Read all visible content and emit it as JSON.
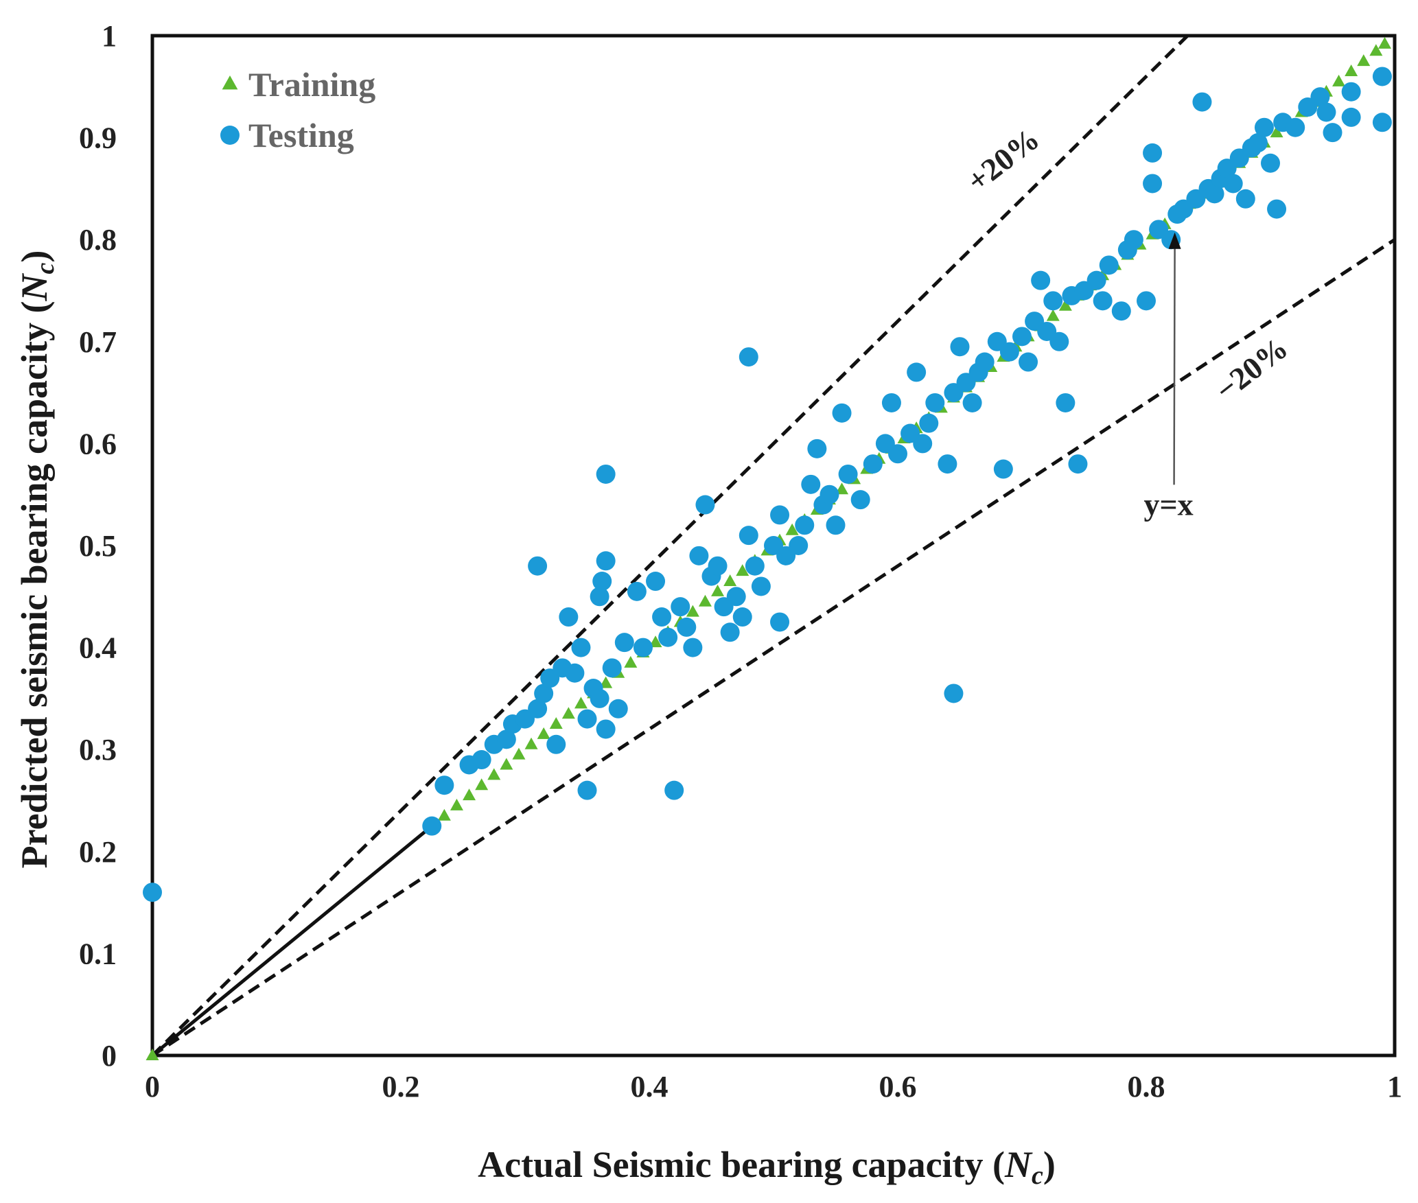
{
  "chart_data": {
    "type": "scatter",
    "title": "",
    "xlabel": "Actual Seismic bearing capacity (",
    "xlabel_var": "N",
    "xlabel_sub": "c",
    "xlabel_end": ")",
    "ylabel": "Predicted seismic bearing capacity (",
    "ylabel_var": "N",
    "ylabel_sub": "c",
    "ylabel_end": ")",
    "xlim": [
      0,
      1
    ],
    "ylim": [
      0,
      1
    ],
    "xticks": [
      "0",
      "0.2",
      "0.4",
      "0.6",
      "0.8",
      "1"
    ],
    "yticks": [
      "0",
      "0.1",
      "0.2",
      "0.3",
      "0.4",
      "0.5",
      "0.6",
      "0.7",
      "0.8",
      "0.9",
      "1"
    ],
    "xtick_values": [
      0,
      0.2,
      0.4,
      0.6,
      0.8,
      1
    ],
    "ytick_values": [
      0,
      0.1,
      0.2,
      0.3,
      0.4,
      0.5,
      0.6,
      0.7,
      0.8,
      0.9,
      1
    ],
    "legend": {
      "position": "top-left",
      "entries": [
        "Training",
        "Testing"
      ]
    },
    "colors": {
      "training": "#5cb82f",
      "testing": "#1b9ad7",
      "lines": "#111111"
    },
    "reference_lines": [
      {
        "name": "y=x",
        "slope": 1.0,
        "style": "solid",
        "from": 0,
        "to": 0.225
      },
      {
        "name": "+20%",
        "slope": 1.2,
        "style": "dashed"
      },
      {
        "name": "-20%",
        "slope": 0.8,
        "style": "dashed"
      }
    ],
    "annotations": [
      {
        "text": "+20%",
        "x": 0.69,
        "y": 0.87
      },
      {
        "text": "−20%",
        "x": 0.89,
        "y": 0.665
      },
      {
        "text": "y=x",
        "x": 0.818,
        "y": 0.53,
        "arrow_to": [
          0.823,
          0.807
        ]
      }
    ],
    "series": [
      {
        "name": "Training",
        "marker": "triangle",
        "points": [
          [
            0,
            0
          ],
          [
            0.225,
            0.225
          ],
          [
            0.235,
            0.235
          ],
          [
            0.245,
            0.245
          ],
          [
            0.255,
            0.255
          ],
          [
            0.265,
            0.265
          ],
          [
            0.275,
            0.275
          ],
          [
            0.285,
            0.285
          ],
          [
            0.295,
            0.295
          ],
          [
            0.305,
            0.305
          ],
          [
            0.315,
            0.315
          ],
          [
            0.325,
            0.325
          ],
          [
            0.335,
            0.335
          ],
          [
            0.345,
            0.345
          ],
          [
            0.355,
            0.355
          ],
          [
            0.365,
            0.365
          ],
          [
            0.375,
            0.375
          ],
          [
            0.385,
            0.385
          ],
          [
            0.395,
            0.395
          ],
          [
            0.405,
            0.405
          ],
          [
            0.415,
            0.415
          ],
          [
            0.425,
            0.425
          ],
          [
            0.435,
            0.435
          ],
          [
            0.445,
            0.445
          ],
          [
            0.455,
            0.455
          ],
          [
            0.465,
            0.465
          ],
          [
            0.475,
            0.475
          ],
          [
            0.485,
            0.485
          ],
          [
            0.495,
            0.495
          ],
          [
            0.505,
            0.505
          ],
          [
            0.515,
            0.515
          ],
          [
            0.525,
            0.525
          ],
          [
            0.535,
            0.535
          ],
          [
            0.545,
            0.545
          ],
          [
            0.555,
            0.555
          ],
          [
            0.565,
            0.565
          ],
          [
            0.575,
            0.575
          ],
          [
            0.585,
            0.585
          ],
          [
            0.595,
            0.595
          ],
          [
            0.605,
            0.605
          ],
          [
            0.615,
            0.615
          ],
          [
            0.625,
            0.625
          ],
          [
            0.635,
            0.635
          ],
          [
            0.645,
            0.645
          ],
          [
            0.655,
            0.655
          ],
          [
            0.665,
            0.665
          ],
          [
            0.675,
            0.675
          ],
          [
            0.685,
            0.685
          ],
          [
            0.695,
            0.695
          ],
          [
            0.705,
            0.705
          ],
          [
            0.715,
            0.715
          ],
          [
            0.725,
            0.725
          ],
          [
            0.735,
            0.735
          ],
          [
            0.745,
            0.745
          ],
          [
            0.755,
            0.755
          ],
          [
            0.765,
            0.765
          ],
          [
            0.775,
            0.775
          ],
          [
            0.785,
            0.785
          ],
          [
            0.795,
            0.795
          ],
          [
            0.805,
            0.805
          ],
          [
            0.815,
            0.815
          ],
          [
            0.825,
            0.825
          ],
          [
            0.835,
            0.835
          ],
          [
            0.845,
            0.845
          ],
          [
            0.855,
            0.855
          ],
          [
            0.865,
            0.865
          ],
          [
            0.875,
            0.875
          ],
          [
            0.885,
            0.885
          ],
          [
            0.895,
            0.895
          ],
          [
            0.905,
            0.905
          ],
          [
            0.915,
            0.915
          ],
          [
            0.925,
            0.925
          ],
          [
            0.935,
            0.935
          ],
          [
            0.945,
            0.945
          ],
          [
            0.955,
            0.955
          ],
          [
            0.965,
            0.965
          ],
          [
            0.975,
            0.975
          ],
          [
            0.985,
            0.985
          ],
          [
            0.992,
            0.992
          ]
        ]
      },
      {
        "name": "Testing",
        "marker": "circle",
        "points": [
          [
            0,
            0.16
          ],
          [
            0.225,
            0.225
          ],
          [
            0.235,
            0.265
          ],
          [
            0.255,
            0.285
          ],
          [
            0.265,
            0.29
          ],
          [
            0.275,
            0.305
          ],
          [
            0.285,
            0.31
          ],
          [
            0.29,
            0.325
          ],
          [
            0.3,
            0.33
          ],
          [
            0.31,
            0.34
          ],
          [
            0.31,
            0.48
          ],
          [
            0.315,
            0.355
          ],
          [
            0.32,
            0.37
          ],
          [
            0.325,
            0.305
          ],
          [
            0.33,
            0.38
          ],
          [
            0.335,
            0.43
          ],
          [
            0.34,
            0.375
          ],
          [
            0.345,
            0.4
          ],
          [
            0.35,
            0.26
          ],
          [
            0.35,
            0.33
          ],
          [
            0.355,
            0.36
          ],
          [
            0.36,
            0.35
          ],
          [
            0.36,
            0.45
          ],
          [
            0.362,
            0.465
          ],
          [
            0.365,
            0.57
          ],
          [
            0.365,
            0.485
          ],
          [
            0.365,
            0.32
          ],
          [
            0.37,
            0.38
          ],
          [
            0.375,
            0.34
          ],
          [
            0.38,
            0.405
          ],
          [
            0.39,
            0.455
          ],
          [
            0.395,
            0.4
          ],
          [
            0.405,
            0.465
          ],
          [
            0.41,
            0.43
          ],
          [
            0.415,
            0.41
          ],
          [
            0.42,
            0.26
          ],
          [
            0.425,
            0.44
          ],
          [
            0.43,
            0.42
          ],
          [
            0.435,
            0.4
          ],
          [
            0.44,
            0.49
          ],
          [
            0.445,
            0.54
          ],
          [
            0.45,
            0.47
          ],
          [
            0.455,
            0.48
          ],
          [
            0.46,
            0.44
          ],
          [
            0.465,
            0.415
          ],
          [
            0.47,
            0.45
          ],
          [
            0.475,
            0.43
          ],
          [
            0.48,
            0.685
          ],
          [
            0.48,
            0.51
          ],
          [
            0.485,
            0.48
          ],
          [
            0.49,
            0.46
          ],
          [
            0.5,
            0.5
          ],
          [
            0.505,
            0.53
          ],
          [
            0.505,
            0.425
          ],
          [
            0.51,
            0.49
          ],
          [
            0.52,
            0.5
          ],
          [
            0.525,
            0.52
          ],
          [
            0.53,
            0.56
          ],
          [
            0.535,
            0.595
          ],
          [
            0.54,
            0.54
          ],
          [
            0.545,
            0.55
          ],
          [
            0.55,
            0.52
          ],
          [
            0.555,
            0.63
          ],
          [
            0.56,
            0.57
          ],
          [
            0.57,
            0.545
          ],
          [
            0.58,
            0.58
          ],
          [
            0.59,
            0.6
          ],
          [
            0.595,
            0.64
          ],
          [
            0.6,
            0.59
          ],
          [
            0.61,
            0.61
          ],
          [
            0.615,
            0.67
          ],
          [
            0.62,
            0.6
          ],
          [
            0.625,
            0.62
          ],
          [
            0.63,
            0.64
          ],
          [
            0.64,
            0.58
          ],
          [
            0.645,
            0.355
          ],
          [
            0.645,
            0.65
          ],
          [
            0.65,
            0.695
          ],
          [
            0.655,
            0.66
          ],
          [
            0.66,
            0.64
          ],
          [
            0.665,
            0.67
          ],
          [
            0.67,
            0.68
          ],
          [
            0.68,
            0.7
          ],
          [
            0.685,
            0.575
          ],
          [
            0.69,
            0.69
          ],
          [
            0.7,
            0.705
          ],
          [
            0.705,
            0.68
          ],
          [
            0.71,
            0.72
          ],
          [
            0.715,
            0.76
          ],
          [
            0.72,
            0.71
          ],
          [
            0.725,
            0.74
          ],
          [
            0.73,
            0.7
          ],
          [
            0.735,
            0.64
          ],
          [
            0.74,
            0.745
          ],
          [
            0.745,
            0.58
          ],
          [
            0.75,
            0.75
          ],
          [
            0.76,
            0.76
          ],
          [
            0.765,
            0.74
          ],
          [
            0.77,
            0.775
          ],
          [
            0.78,
            0.73
          ],
          [
            0.785,
            0.79
          ],
          [
            0.79,
            0.8
          ],
          [
            0.8,
            0.74
          ],
          [
            0.805,
            0.855
          ],
          [
            0.805,
            0.885
          ],
          [
            0.81,
            0.81
          ],
          [
            0.82,
            0.8
          ],
          [
            0.825,
            0.825
          ],
          [
            0.83,
            0.83
          ],
          [
            0.84,
            0.84
          ],
          [
            0.845,
            0.935
          ],
          [
            0.85,
            0.85
          ],
          [
            0.855,
            0.845
          ],
          [
            0.86,
            0.86
          ],
          [
            0.865,
            0.87
          ],
          [
            0.87,
            0.855
          ],
          [
            0.875,
            0.88
          ],
          [
            0.88,
            0.84
          ],
          [
            0.885,
            0.89
          ],
          [
            0.89,
            0.895
          ],
          [
            0.895,
            0.91
          ],
          [
            0.9,
            0.875
          ],
          [
            0.905,
            0.83
          ],
          [
            0.91,
            0.915
          ],
          [
            0.92,
            0.91
          ],
          [
            0.93,
            0.93
          ],
          [
            0.94,
            0.94
          ],
          [
            0.945,
            0.925
          ],
          [
            0.95,
            0.905
          ],
          [
            0.965,
            0.945
          ],
          [
            0.965,
            0.92
          ],
          [
            0.99,
            0.96
          ],
          [
            0.99,
            0.915
          ]
        ]
      }
    ]
  }
}
